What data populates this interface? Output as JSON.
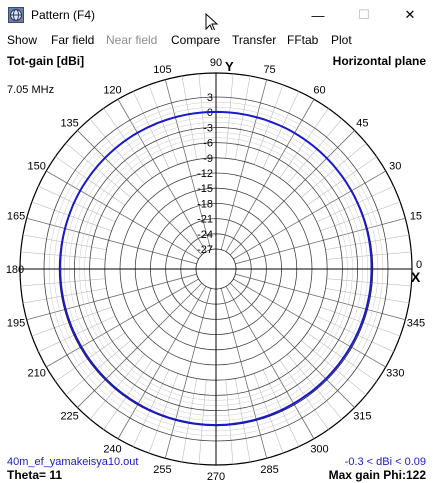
{
  "window": {
    "title": "Pattern   (F4)",
    "app_icon": "antenna-globe-icon",
    "minimize": "—",
    "maximize": "☐",
    "close": "✕"
  },
  "menu": {
    "items": [
      {
        "label": "Show",
        "enabled": true
      },
      {
        "label": "Far field",
        "enabled": true
      },
      {
        "label": "Near field",
        "enabled": false
      },
      {
        "label": "Compare",
        "enabled": true
      },
      {
        "label": "Transfer",
        "enabled": true
      },
      {
        "label": "FFtab",
        "enabled": true
      },
      {
        "label": "Plot",
        "enabled": true
      }
    ]
  },
  "plot": {
    "label_top_left": "Tot-gain [dBi]",
    "label_top_right": "Horizontal plane",
    "frequency": "7.05 MHz",
    "filename": "40m_ef_yamakeisya10.out",
    "gain_range": "-0.3 < dBi < 0.09",
    "theta": "Theta= 11",
    "max_gain": "Max gain Phi:122",
    "axis_y": "Y",
    "axis_x": "X",
    "trace_color": "#1a1acd"
  },
  "chart_data": {
    "type": "polar",
    "angle_labels": [
      "0",
      "15",
      "30",
      "45",
      "60",
      "75",
      "90",
      "105",
      "120",
      "135",
      "150",
      "165",
      "180",
      "195",
      "210",
      "225",
      "240",
      "255",
      "270",
      "285",
      "300",
      "315",
      "330",
      "345"
    ],
    "radial_labels": [
      "3",
      "0",
      "-3",
      "-6",
      "-9",
      "-12",
      "-15",
      "-18",
      "-21",
      "-24",
      "-27"
    ],
    "radial_unit": "dBi",
    "series": [
      {
        "phi": [
          0,
          30,
          60,
          90,
          122,
          150,
          180,
          210,
          240,
          270,
          300,
          330,
          360
        ],
        "gain": [
          -0.25,
          -0.1,
          0.05,
          0.06,
          0.09,
          0.0,
          -0.2,
          -0.25,
          -0.2,
          -0.15,
          -0.3,
          -0.3,
          -0.25
        ]
      }
    ]
  }
}
